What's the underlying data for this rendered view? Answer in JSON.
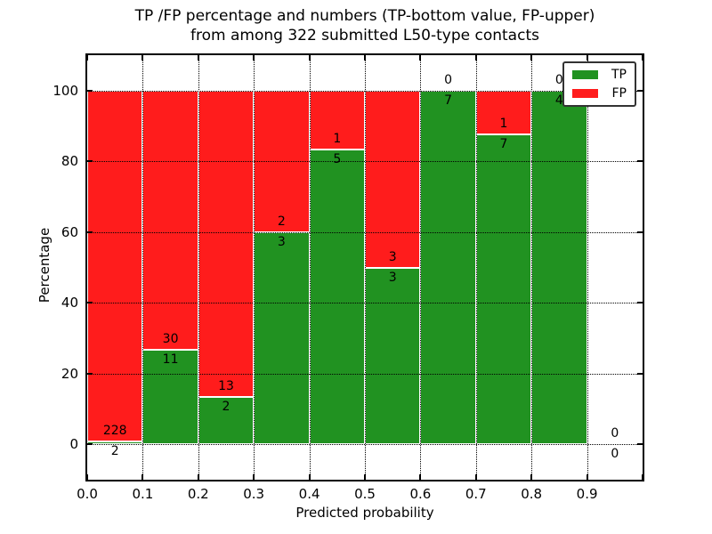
{
  "figure": {
    "title_line1": "TP /FP percentage and numbers (TP-bottom value, FP-upper)",
    "title_line2": "from among 322 submitted L50-type contacts",
    "xlabel": "Predicted probability",
    "ylabel": "Percentage",
    "background": "#ffffff"
  },
  "legend": {
    "position": "upper right",
    "items": [
      {
        "label": "TP",
        "color": "#219221"
      },
      {
        "label": "FP",
        "color": "#ff1c1c"
      }
    ]
  },
  "chart_data": {
    "type": "bar",
    "stacked": true,
    "normalized": "each bin scaled to 100%; in-bar labels show raw counts (TP bottom value, FP upper value)",
    "title": "TP /FP percentage and numbers (TP-bottom value, FP-upper) from among 322 submitted L50-type contacts",
    "xlabel": "Predicted probability",
    "ylabel": "Percentage",
    "total_submitted": 322,
    "bin_width": 0.1,
    "bin_centers": [
      0.05,
      0.15,
      0.25,
      0.35,
      0.45,
      0.55,
      0.65,
      0.75,
      0.85,
      0.95
    ],
    "categories": [
      "0.0-0.1",
      "0.1-0.2",
      "0.2-0.3",
      "0.3-0.4",
      "0.4-0.5",
      "0.5-0.6",
      "0.6-0.7",
      "0.7-0.8",
      "0.8-0.9",
      "0.9-1.0"
    ],
    "series": [
      {
        "name": "TP",
        "color": "#219221",
        "counts": [
          2,
          11,
          2,
          3,
          5,
          3,
          7,
          7,
          4,
          0
        ]
      },
      {
        "name": "FP",
        "color": "#ff1c1c",
        "counts": [
          228,
          30,
          13,
          2,
          1,
          3,
          0,
          1,
          0,
          0
        ]
      }
    ],
    "tp_percent_of_bin": [
      0.87,
      26.83,
      13.33,
      60.0,
      83.33,
      50.0,
      100.0,
      87.5,
      100.0,
      null
    ],
    "xticks": [
      "0.0",
      "0.1",
      "0.2",
      "0.3",
      "0.4",
      "0.5",
      "0.6",
      "0.7",
      "0.8",
      "0.9"
    ],
    "yticks": [
      0,
      20,
      40,
      60,
      80,
      100
    ],
    "xlim": [
      0.0,
      1.0
    ],
    "ylim": [
      -10,
      110
    ],
    "grid": true,
    "grid_style": "dotted",
    "legend_position": "upper right"
  }
}
